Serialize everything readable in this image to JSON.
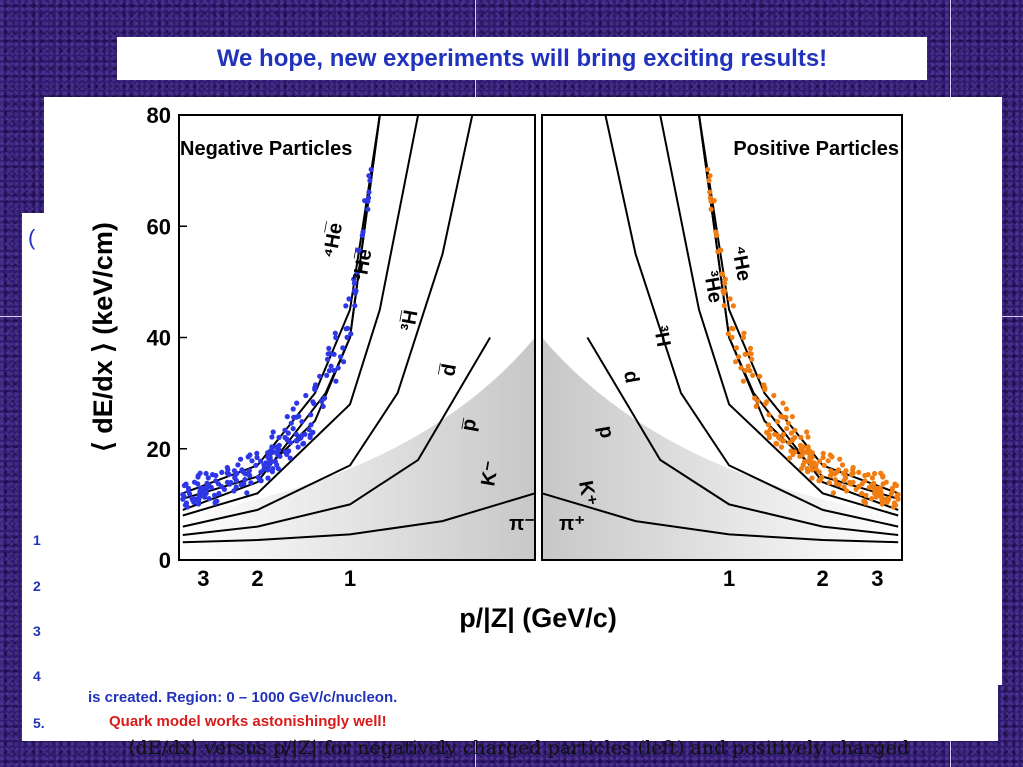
{
  "banner": {
    "text": "We hope, new experiments will bring exciting results!"
  },
  "slide": {
    "panel_marker": "(",
    "list_numbers": [
      "1",
      "2",
      "3",
      "4",
      "5."
    ],
    "item4_text": "is created. Region: 0 – 1000 GeV/c/nucleon.",
    "item5_text": "Quark model works astonishingly well!"
  },
  "caption": {
    "text": "⟨dE/dx⟩ versus p/|Z| for negatively charged particles (left) and positively charged"
  },
  "chart_data": {
    "type": "scatter",
    "title": "",
    "ylabel": "⟨ dE/dx ⟩ (keV/cm)",
    "xlabel": "p/|Z| (GeV/c)",
    "ylim": [
      0,
      80
    ],
    "yticks": [
      0,
      20,
      40,
      60,
      80
    ],
    "xticks_left": [
      3,
      2,
      1
    ],
    "xticks_right": [
      1,
      2,
      3
    ],
    "panels": [
      {
        "name": "Negative Particles",
        "curve_labels": [
          "⁴He̅",
          "³He̅",
          "³H̅",
          "d̅",
          "p̅",
          "K⁻",
          "π⁻"
        ]
      },
      {
        "name": "Positive Particles",
        "curve_labels": [
          "⁴He",
          "³He",
          "³H",
          "d",
          "p",
          "K⁺",
          "π⁺"
        ]
      }
    ],
    "curves": [
      {
        "label": "π",
        "values": [
          [
            3.5,
            3.2
          ],
          [
            2,
            3.6
          ],
          [
            1,
            4.6
          ],
          [
            0.5,
            7
          ],
          [
            0.25,
            12
          ]
        ]
      },
      {
        "label": "K",
        "values": [
          [
            3.5,
            4.5
          ],
          [
            2,
            6
          ],
          [
            1,
            10
          ],
          [
            0.6,
            18
          ],
          [
            0.35,
            40
          ]
        ]
      },
      {
        "label": "p",
        "values": [
          [
            3.5,
            6
          ],
          [
            2,
            9
          ],
          [
            1,
            17
          ],
          [
            0.7,
            30
          ],
          [
            0.5,
            55
          ],
          [
            0.4,
            80
          ]
        ]
      },
      {
        "label": "d",
        "values": [
          [
            3.5,
            8
          ],
          [
            2,
            12
          ],
          [
            1,
            28
          ],
          [
            0.8,
            45
          ],
          [
            0.6,
            80
          ]
        ]
      },
      {
        "label": "³H",
        "values": [
          [
            3.5,
            9
          ],
          [
            2,
            14
          ],
          [
            1.2,
            30
          ],
          [
            1,
            40
          ],
          [
            0.8,
            80
          ]
        ]
      },
      {
        "label": "³He",
        "values": [
          [
            3.5,
            11
          ],
          [
            2,
            15
          ],
          [
            1.3,
            25
          ],
          [
            1,
            40
          ],
          [
            0.8,
            80
          ]
        ]
      },
      {
        "label": "⁴He",
        "values": [
          [
            3.5,
            12
          ],
          [
            2,
            17
          ],
          [
            1.3,
            30
          ],
          [
            1,
            45
          ],
          [
            0.8,
            80
          ]
        ]
      }
    ],
    "highlight_colors": {
      "negative": "#2e37e6",
      "positive": "#f07d12"
    }
  }
}
